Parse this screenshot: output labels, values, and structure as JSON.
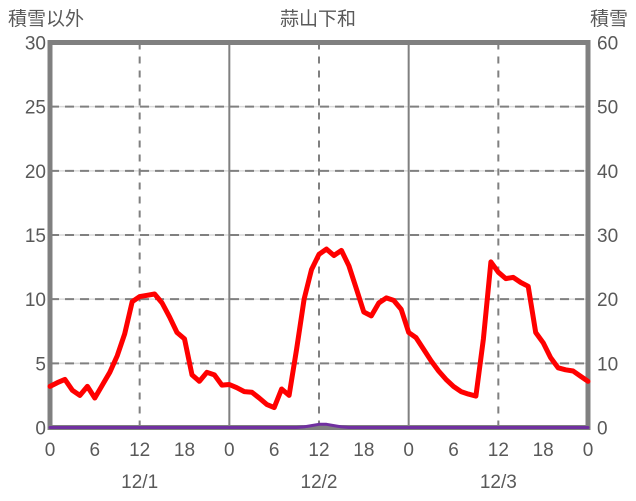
{
  "header": {
    "left_axis_title": "積雪以外",
    "chart_title": "蒜山下和",
    "right_axis_title": "積雪"
  },
  "colors": {
    "text": "#595959",
    "frame": "#808080",
    "grid_dark": "#808080",
    "grid_light": "#d9d9d9",
    "series_other_than_snow": "#ff0000",
    "series_snow_depth": "#7030a0",
    "background": "#ffffff"
  },
  "chart_data": {
    "type": "line",
    "title": "蒜山下和",
    "left_axis": {
      "label": "積雪以外",
      "min": 0,
      "max": 30,
      "tick_step": 5,
      "ticks": [
        "0",
        "5",
        "10",
        "15",
        "20",
        "25",
        "30"
      ]
    },
    "right_axis": {
      "label": "積雪",
      "min": 0,
      "max": 60,
      "tick_step": 10,
      "ticks": [
        "0",
        "10",
        "20",
        "30",
        "40",
        "50",
        "60"
      ]
    },
    "x_axis": {
      "total_hours": 72,
      "tick_hours": [
        0,
        6,
        12,
        18,
        24,
        30,
        36,
        42,
        48,
        54,
        60,
        66,
        72
      ],
      "tick_labels": [
        "0",
        "6",
        "12",
        "18",
        "0",
        "6",
        "12",
        "18",
        "0",
        "6",
        "12",
        "18",
        "0"
      ],
      "day_labels": [
        "12/1",
        "12/2",
        "12/3"
      ],
      "day_label_hours": [
        12,
        36,
        60
      ],
      "solid_line_hours": [
        24,
        48
      ],
      "dashed_line_hours": [
        12,
        36,
        60
      ]
    },
    "legend_position": "none",
    "grid": true,
    "series": [
      {
        "name": "積雪以外",
        "axis": "left",
        "color": "#ff0000",
        "width": 5,
        "start_hour": 0,
        "step_hours": 1,
        "values": [
          3.2,
          3.5,
          3.75,
          2.9,
          2.5,
          3.2,
          2.3,
          3.3,
          4.3,
          5.6,
          7.3,
          9.8,
          10.2,
          10.3,
          10.4,
          9.7,
          8.6,
          7.4,
          6.9,
          4.1,
          3.6,
          4.3,
          4.1,
          3.3,
          3.35,
          3.1,
          2.8,
          2.75,
          2.3,
          1.8,
          1.55,
          3.0,
          2.5,
          6.1,
          10.0,
          12.3,
          13.5,
          13.9,
          13.4,
          13.8,
          12.6,
          10.8,
          9.0,
          8.7,
          9.7,
          10.1,
          9.9,
          9.2,
          7.4,
          7.0,
          6.1,
          5.2,
          4.4,
          3.75,
          3.2,
          2.8,
          2.6,
          2.45,
          6.9,
          12.9,
          12.1,
          11.6,
          11.7,
          11.3,
          11.0,
          7.4,
          6.6,
          5.45,
          4.65,
          4.5,
          4.4,
          4.0,
          3.6
        ]
      },
      {
        "name": "積雪",
        "axis": "right",
        "color": "#7030a0",
        "width": 3,
        "start_hour": 0,
        "step_hours": 1,
        "values": [
          0,
          0,
          0,
          0,
          0,
          0,
          0,
          0,
          0,
          0,
          0,
          0,
          0,
          0,
          0,
          0,
          0,
          0,
          0,
          0,
          0,
          0,
          0,
          0,
          0,
          0,
          0,
          0,
          0,
          0,
          0,
          0,
          0,
          0,
          0.1,
          0.3,
          0.5,
          0.5,
          0.3,
          0.1,
          0,
          0,
          0,
          0,
          0,
          0,
          0,
          0,
          0,
          0,
          0,
          0,
          0,
          0,
          0,
          0,
          0,
          0,
          0,
          0,
          0,
          0,
          0,
          0,
          0,
          0,
          0,
          0,
          0,
          0,
          0,
          0,
          0
        ]
      }
    ]
  }
}
